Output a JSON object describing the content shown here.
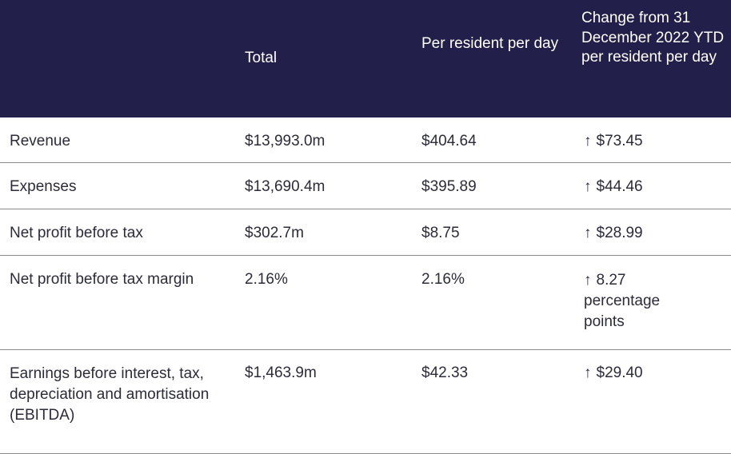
{
  "header": {
    "total": "Total",
    "per_resident": "Per resident per day",
    "change": "Change from 31 December 2022 YTD per resident per day"
  },
  "rows": [
    {
      "label": "Revenue",
      "total": "$13,993.0m",
      "per_resident": "$404.64",
      "arrow": "↑",
      "change": "$73.45"
    },
    {
      "label": "Expenses",
      "total": "$13,690.4m",
      "per_resident": "$395.89",
      "arrow": "↑",
      "change": "$44.46"
    },
    {
      "label": "Net profit before tax",
      "total": "$302.7m",
      "per_resident": "$8.75",
      "arrow": "↑",
      "change": "$28.99"
    },
    {
      "label": "Net profit before tax margin",
      "total": "2.16%",
      "per_resident": "2.16%",
      "arrow": "↑",
      "change": "8.27 percentage points"
    },
    {
      "label": "Earnings before interest, tax, depreciation and amortisation (EBITDA)",
      "total": "$1,463.9m",
      "per_resident": "$42.33",
      "arrow": "↑",
      "change": "$29.40"
    }
  ],
  "colors": {
    "header_bg": "#221f4a",
    "header_text": "#ffffff",
    "body_text": "#2b2b3a",
    "row_border": "#8a8a8a"
  }
}
